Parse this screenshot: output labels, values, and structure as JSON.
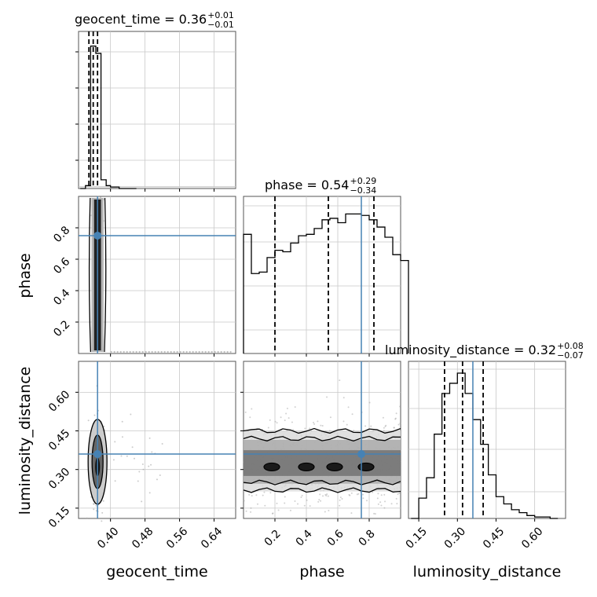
{
  "chart_data": {
    "type": "corner",
    "parameters": [
      "geocent_time",
      "phase",
      "luminosity_distance"
    ],
    "truths": {
      "geocent_time": 0.37,
      "phase": 0.75,
      "luminosity_distance": 0.36
    },
    "titles": [
      {
        "param": "geocent_time",
        "text": "geocent_time = 0.36",
        "plus": "+0.01",
        "minus": "−0.01"
      },
      {
        "param": "phase",
        "text": "phase = 0.54",
        "plus": "+0.29",
        "minus": "−0.34"
      },
      {
        "param": "luminosity_distance",
        "text": "luminosity_distance = 0.32",
        "plus": "+0.08",
        "minus": "−0.07"
      }
    ],
    "axes": {
      "geocent_time": {
        "label": "geocent_time",
        "range": [
          0.326,
          0.69
        ],
        "ticks": [
          "0.40",
          "0.48",
          "0.56",
          "0.64"
        ]
      },
      "phase": {
        "label": "phase",
        "range": [
          0.0,
          1.0
        ],
        "ticks": [
          "0.2",
          "0.4",
          "0.6",
          "0.8"
        ]
      },
      "luminosity_distance": {
        "label": "luminosity_distance",
        "range": [
          0.11,
          0.72
        ],
        "ticks": [
          "0.15",
          "0.30",
          "0.45",
          "0.60"
        ]
      }
    },
    "histograms": {
      "geocent_time": {
        "bins": [
          0.33,
          0.342,
          0.354,
          0.366,
          0.378,
          0.39,
          0.4,
          0.42,
          0.44,
          0.46
        ],
        "counts": [
          0.0,
          0.02,
          0.98,
          0.93,
          0.06,
          0.02,
          0.01,
          0.0,
          0.0
        ],
        "quantiles": [
          0.35,
          0.36,
          0.37
        ]
      },
      "phase": {
        "bin_width": 0.05,
        "counts": [
          0.82,
          0.55,
          0.56,
          0.66,
          0.71,
          0.7,
          0.76,
          0.81,
          0.82,
          0.86,
          0.92,
          0.93,
          0.9,
          0.96,
          0.96,
          0.95,
          0.92,
          0.87,
          0.8,
          0.68,
          0.64
        ],
        "quantiles": [
          0.2,
          0.54,
          0.83
        ]
      },
      "luminosity_distance": {
        "bins": [
          0.12,
          0.15,
          0.18,
          0.21,
          0.24,
          0.27,
          0.3,
          0.33,
          0.36,
          0.39,
          0.42,
          0.45,
          0.48,
          0.51,
          0.54,
          0.57,
          0.6,
          0.63,
          0.66,
          0.69
        ],
        "counts": [
          0.0,
          0.14,
          0.28,
          0.58,
          0.86,
          0.93,
          1.0,
          0.86,
          0.68,
          0.51,
          0.3,
          0.15,
          0.1,
          0.06,
          0.04,
          0.02,
          0.01,
          0.01,
          0.0
        ],
        "quantiles": [
          0.25,
          0.32,
          0.4
        ]
      }
    },
    "colors": {
      "truth": "#4682b4",
      "hist": "#000000",
      "grid": "#c8c8c8",
      "points": "#9a9a9a",
      "axes_frame": "#555555"
    }
  }
}
